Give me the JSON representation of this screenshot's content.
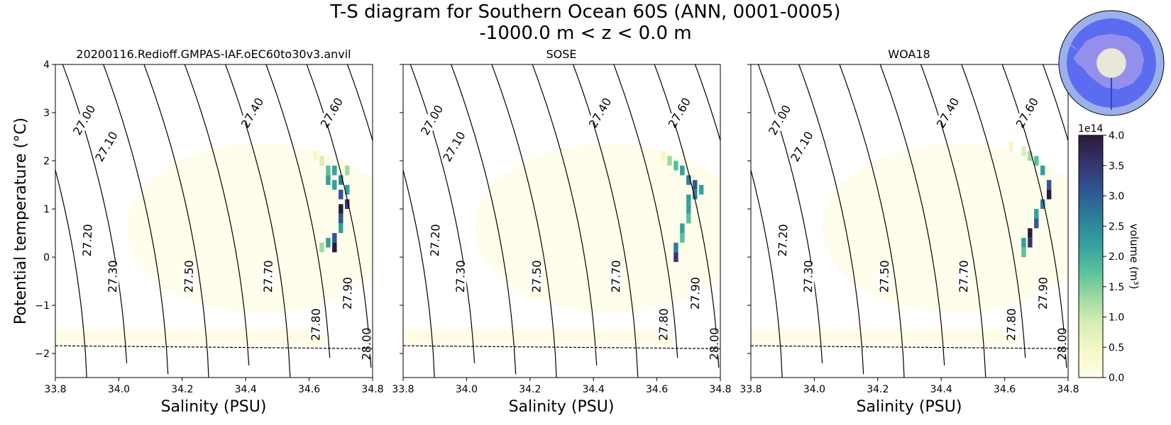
{
  "figure": {
    "title_line1": "T-S diagram for Southern Ocean 60S (ANN, 0001-0005)",
    "title_line2": "-1000.0 m < z < 0.0 m",
    "ylabel": "Potential temperature (°C)"
  },
  "chart_data": [
    {
      "type": "heatmap",
      "title": "20200116.Redioff.GMPAS-IAF.oEC60to30v3.anvil",
      "xlabel": "Salinity (PSU)",
      "ylabel": "Potential temperature (°C)",
      "xlim": [
        33.8,
        34.8
      ],
      "ylim": [
        -2.5,
        4
      ],
      "xticks": [
        "33.8",
        "34.0",
        "34.2",
        "34.4",
        "34.6",
        "34.8"
      ],
      "yticks": [
        "−2",
        "−1",
        "0",
        "1",
        "2",
        "3",
        "4"
      ],
      "freezing_line": [
        [
          33.8,
          -1.84
        ],
        [
          34.8,
          -1.9
        ]
      ],
      "cells": [
        {
          "s": 34.66,
          "t": 1.8,
          "v": 1.6
        },
        {
          "s": 34.66,
          "t": 1.6,
          "v": 2.0
        },
        {
          "s": 34.68,
          "t": 1.8,
          "v": 2.0
        },
        {
          "s": 34.68,
          "t": 1.5,
          "v": 2.4
        },
        {
          "s": 34.7,
          "t": 1.6,
          "v": 2.6
        },
        {
          "s": 34.7,
          "t": 1.3,
          "v": 3.0
        },
        {
          "s": 34.72,
          "t": 1.4,
          "v": 2.0
        },
        {
          "s": 34.72,
          "t": 1.1,
          "v": 3.6
        },
        {
          "s": 34.7,
          "t": 1.0,
          "v": 4.0
        },
        {
          "s": 34.7,
          "t": 0.8,
          "v": 3.2
        },
        {
          "s": 34.7,
          "t": 0.6,
          "v": 2.4
        },
        {
          "s": 34.68,
          "t": 0.4,
          "v": 3.0
        },
        {
          "s": 34.68,
          "t": 0.2,
          "v": 4.0
        },
        {
          "s": 34.66,
          "t": 0.3,
          "v": 2.2
        },
        {
          "s": 34.64,
          "t": 0.2,
          "v": 1.5
        },
        {
          "s": 34.64,
          "t": 2.0,
          "v": 0.9
        },
        {
          "s": 34.62,
          "t": 2.1,
          "v": 0.4
        },
        {
          "s": 34.72,
          "t": 1.8,
          "v": 1.2
        }
      ]
    },
    {
      "type": "heatmap",
      "title": "SOSE",
      "xlabel": "Salinity (PSU)",
      "xlim": [
        33.8,
        34.8
      ],
      "ylim": [
        -2.5,
        4
      ],
      "xticks": [
        "33.8",
        "34.0",
        "34.2",
        "34.4",
        "34.6",
        "34.8"
      ],
      "freezing_line": [
        [
          33.8,
          -1.84
        ],
        [
          34.8,
          -1.9
        ]
      ],
      "cells": [
        {
          "s": 34.64,
          "t": 2.0,
          "v": 1.2
        },
        {
          "s": 34.66,
          "t": 1.9,
          "v": 1.8
        },
        {
          "s": 34.68,
          "t": 1.8,
          "v": 2.0
        },
        {
          "s": 34.7,
          "t": 1.6,
          "v": 2.6
        },
        {
          "s": 34.72,
          "t": 1.5,
          "v": 3.0
        },
        {
          "s": 34.72,
          "t": 1.3,
          "v": 2.6
        },
        {
          "s": 34.7,
          "t": 1.2,
          "v": 2.2
        },
        {
          "s": 34.7,
          "t": 1.0,
          "v": 2.0
        },
        {
          "s": 34.7,
          "t": 0.8,
          "v": 1.6
        },
        {
          "s": 34.68,
          "t": 0.6,
          "v": 2.4
        },
        {
          "s": 34.68,
          "t": 0.4,
          "v": 1.8
        },
        {
          "s": 34.66,
          "t": 0.2,
          "v": 2.6
        },
        {
          "s": 34.66,
          "t": 0.0,
          "v": 3.4
        },
        {
          "s": 34.74,
          "t": 1.4,
          "v": 2.2
        },
        {
          "s": 34.62,
          "t": 2.1,
          "v": 0.5
        }
      ]
    },
    {
      "type": "heatmap",
      "title": "WOA18",
      "xlabel": "Salinity (PSU)",
      "xlim": [
        33.8,
        34.8
      ],
      "ylim": [
        -2.5,
        4
      ],
      "xticks": [
        "33.8",
        "34.0",
        "34.2",
        "34.4",
        "34.6",
        "34.8"
      ],
      "freezing_line": [
        [
          33.8,
          -1.84
        ],
        [
          34.8,
          -1.9
        ]
      ],
      "cells": [
        {
          "s": 34.62,
          "t": 2.3,
          "v": 0.6
        },
        {
          "s": 34.66,
          "t": 2.2,
          "v": 0.8
        },
        {
          "s": 34.68,
          "t": 2.1,
          "v": 1.2
        },
        {
          "s": 34.7,
          "t": 2.0,
          "v": 1.8
        },
        {
          "s": 34.72,
          "t": 1.8,
          "v": 2.4
        },
        {
          "s": 34.74,
          "t": 1.5,
          "v": 3.0
        },
        {
          "s": 34.74,
          "t": 1.3,
          "v": 4.0
        },
        {
          "s": 34.72,
          "t": 1.1,
          "v": 2.6
        },
        {
          "s": 34.7,
          "t": 0.9,
          "v": 2.2
        },
        {
          "s": 34.7,
          "t": 0.7,
          "v": 3.0
        },
        {
          "s": 34.68,
          "t": 0.5,
          "v": 4.0
        },
        {
          "s": 34.68,
          "t": 0.3,
          "v": 3.6
        },
        {
          "s": 34.66,
          "t": 0.3,
          "v": 2.4
        },
        {
          "s": 34.66,
          "t": 0.1,
          "v": 1.8
        }
      ]
    }
  ],
  "density_contours": [
    27.0,
    27.1,
    27.2,
    27.3,
    27.4,
    27.5,
    27.6,
    27.7,
    27.8,
    27.9,
    28.0
  ],
  "contour_labels": [
    {
      "sigma": "27.00",
      "s": 33.89,
      "t": 2.85
    },
    {
      "sigma": "27.10",
      "s": 33.96,
      "t": 2.3
    },
    {
      "sigma": "27.20",
      "s": 33.9,
      "t": 0.35
    },
    {
      "sigma": "27.30",
      "s": 33.98,
      "t": -0.4
    },
    {
      "sigma": "27.40",
      "s": 34.42,
      "t": 3.0
    },
    {
      "sigma": "27.50",
      "s": 34.22,
      "t": -0.4
    },
    {
      "sigma": "27.60",
      "s": 34.67,
      "t": 3.0
    },
    {
      "sigma": "27.70",
      "s": 34.47,
      "t": -0.4
    },
    {
      "sigma": "27.80",
      "s": 34.62,
      "t": -1.4
    },
    {
      "sigma": "27.90",
      "s": 34.72,
      "t": -0.75
    },
    {
      "sigma": "28.00",
      "s": 34.78,
      "t": -1.8
    }
  ],
  "colorbar": {
    "label": "volume (m³)",
    "multiplier": "1e14",
    "vmin": 0.0,
    "vmax": 4.0,
    "ticks": [
      "0.0",
      "0.5",
      "1.0",
      "1.5",
      "2.0",
      "2.5",
      "3.0",
      "3.5",
      "4.0"
    ],
    "colors": [
      "#fffde6",
      "#f6f7c9",
      "#d9efb2",
      "#9edaa0",
      "#58c19d",
      "#34a09d",
      "#2e7e9a",
      "#2f5694",
      "#35356f",
      "#2b1b3a"
    ]
  },
  "inset_map": {
    "description": "Antarctica polar stereographic region",
    "ocean_color": "#5b6cf0",
    "outer_ring_color": "#9cb1ec",
    "land_color": "#9f95ec"
  }
}
